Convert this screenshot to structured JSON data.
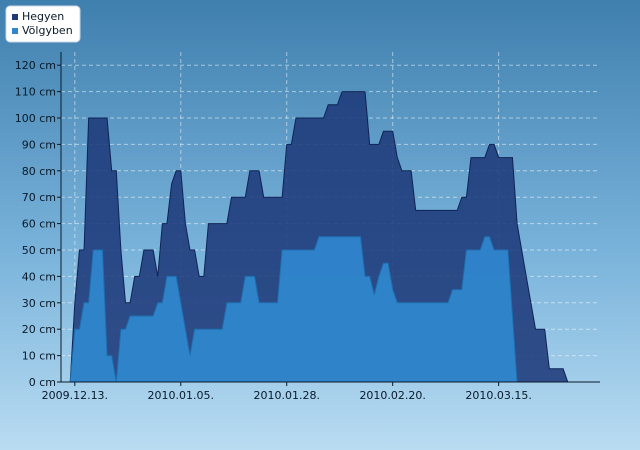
{
  "chart_data": {
    "type": "area",
    "title": "",
    "xlabel": "",
    "ylabel": "",
    "y_unit": "cm",
    "ylim": [
      0,
      125
    ],
    "xlim": [
      "2009-12-10",
      "2010-04-06"
    ],
    "grid": true,
    "legend_position": "top-left",
    "y_ticks": [
      0,
      10,
      20,
      30,
      40,
      50,
      60,
      70,
      80,
      90,
      100,
      110,
      120
    ],
    "y_tick_labels": [
      "0 cm",
      "10 cm",
      "20 cm",
      "30 cm",
      "40 cm",
      "50 cm",
      "60 cm",
      "70 cm",
      "80 cm",
      "90 cm",
      "100 cm",
      "110 cm",
      "120 cm"
    ],
    "x_ticks": [
      "2009-12-13",
      "2010-01-05",
      "2010-01-28",
      "2010-02-20",
      "2010-03-15"
    ],
    "x_tick_labels": [
      "2009.12.13.",
      "2010.01.05.",
      "2010.01.28.",
      "2010.02.20.",
      "2010.03.15."
    ],
    "series": [
      {
        "name": "Hegyen",
        "color": "#1e3a7a",
        "points": [
          [
            "2009-12-10",
            0
          ],
          [
            "2009-12-11",
            0
          ],
          [
            "2009-12-12",
            0
          ],
          [
            "2009-12-13",
            30
          ],
          [
            "2009-12-14",
            50
          ],
          [
            "2009-12-15",
            50
          ],
          [
            "2009-12-16",
            100
          ],
          [
            "2009-12-17",
            100
          ],
          [
            "2009-12-18",
            100
          ],
          [
            "2009-12-19",
            100
          ],
          [
            "2009-12-20",
            100
          ],
          [
            "2009-12-21",
            80
          ],
          [
            "2009-12-22",
            80
          ],
          [
            "2009-12-23",
            50
          ],
          [
            "2009-12-24",
            30
          ],
          [
            "2009-12-25",
            30
          ],
          [
            "2009-12-26",
            40
          ],
          [
            "2009-12-27",
            40
          ],
          [
            "2009-12-28",
            50
          ],
          [
            "2009-12-29",
            50
          ],
          [
            "2009-12-30",
            50
          ],
          [
            "2009-12-31",
            40
          ],
          [
            "2010-01-01",
            60
          ],
          [
            "2010-01-02",
            60
          ],
          [
            "2010-01-03",
            75
          ],
          [
            "2010-01-04",
            80
          ],
          [
            "2010-01-05",
            80
          ],
          [
            "2010-01-06",
            60
          ],
          [
            "2010-01-07",
            50
          ],
          [
            "2010-01-08",
            50
          ],
          [
            "2010-01-09",
            40
          ],
          [
            "2010-01-10",
            40
          ],
          [
            "2010-01-11",
            60
          ],
          [
            "2010-01-12",
            60
          ],
          [
            "2010-01-13",
            60
          ],
          [
            "2010-01-14",
            60
          ],
          [
            "2010-01-15",
            60
          ],
          [
            "2010-01-16",
            70
          ],
          [
            "2010-01-17",
            70
          ],
          [
            "2010-01-18",
            70
          ],
          [
            "2010-01-19",
            70
          ],
          [
            "2010-01-20",
            80
          ],
          [
            "2010-01-21",
            80
          ],
          [
            "2010-01-22",
            80
          ],
          [
            "2010-01-23",
            70
          ],
          [
            "2010-01-24",
            70
          ],
          [
            "2010-01-25",
            70
          ],
          [
            "2010-01-26",
            70
          ],
          [
            "2010-01-27",
            70
          ],
          [
            "2010-01-28",
            90
          ],
          [
            "2010-01-29",
            90
          ],
          [
            "2010-01-30",
            100
          ],
          [
            "2010-01-31",
            100
          ],
          [
            "2010-02-01",
            100
          ],
          [
            "2010-02-02",
            100
          ],
          [
            "2010-02-03",
            100
          ],
          [
            "2010-02-04",
            100
          ],
          [
            "2010-02-05",
            100
          ],
          [
            "2010-02-06",
            105
          ],
          [
            "2010-02-07",
            105
          ],
          [
            "2010-02-08",
            105
          ],
          [
            "2010-02-09",
            110
          ],
          [
            "2010-02-10",
            110
          ],
          [
            "2010-02-11",
            110
          ],
          [
            "2010-02-12",
            110
          ],
          [
            "2010-02-13",
            110
          ],
          [
            "2010-02-14",
            110
          ],
          [
            "2010-02-15",
            90
          ],
          [
            "2010-02-16",
            90
          ],
          [
            "2010-02-17",
            90
          ],
          [
            "2010-02-18",
            95
          ],
          [
            "2010-02-19",
            95
          ],
          [
            "2010-02-20",
            95
          ],
          [
            "2010-02-21",
            85
          ],
          [
            "2010-02-22",
            80
          ],
          [
            "2010-02-23",
            80
          ],
          [
            "2010-02-24",
            80
          ],
          [
            "2010-02-25",
            65
          ],
          [
            "2010-02-26",
            65
          ],
          [
            "2010-02-27",
            65
          ],
          [
            "2010-02-28",
            65
          ],
          [
            "2010-03-01",
            65
          ],
          [
            "2010-03-02",
            65
          ],
          [
            "2010-03-03",
            65
          ],
          [
            "2010-03-04",
            65
          ],
          [
            "2010-03-05",
            65
          ],
          [
            "2010-03-06",
            65
          ],
          [
            "2010-03-07",
            70
          ],
          [
            "2010-03-08",
            70
          ],
          [
            "2010-03-09",
            85
          ],
          [
            "2010-03-10",
            85
          ],
          [
            "2010-03-11",
            85
          ],
          [
            "2010-03-12",
            85
          ],
          [
            "2010-03-13",
            90
          ],
          [
            "2010-03-14",
            90
          ],
          [
            "2010-03-15",
            85
          ],
          [
            "2010-03-16",
            85
          ],
          [
            "2010-03-17",
            85
          ],
          [
            "2010-03-18",
            85
          ],
          [
            "2010-03-19",
            60
          ],
          [
            "2010-03-20",
            50
          ],
          [
            "2010-03-21",
            40
          ],
          [
            "2010-03-22",
            30
          ],
          [
            "2010-03-23",
            20
          ],
          [
            "2010-03-24",
            20
          ],
          [
            "2010-03-25",
            20
          ],
          [
            "2010-03-26",
            5
          ],
          [
            "2010-03-27",
            5
          ],
          [
            "2010-03-28",
            5
          ],
          [
            "2010-03-29",
            5
          ],
          [
            "2010-03-30",
            0
          ]
        ]
      },
      {
        "name": "Völgyben",
        "color": "#2f86cc",
        "points": [
          [
            "2009-12-10",
            0
          ],
          [
            "2009-12-11",
            0
          ],
          [
            "2009-12-12",
            0
          ],
          [
            "2009-12-13",
            20
          ],
          [
            "2009-12-14",
            20
          ],
          [
            "2009-12-15",
            30
          ],
          [
            "2009-12-16",
            30
          ],
          [
            "2009-12-17",
            50
          ],
          [
            "2009-12-18",
            50
          ],
          [
            "2009-12-19",
            50
          ],
          [
            "2009-12-20",
            10
          ],
          [
            "2009-12-21",
            10
          ],
          [
            "2009-12-22",
            0
          ],
          [
            "2009-12-23",
            20
          ],
          [
            "2009-12-24",
            20
          ],
          [
            "2009-12-25",
            25
          ],
          [
            "2009-12-26",
            25
          ],
          [
            "2009-12-27",
            25
          ],
          [
            "2009-12-28",
            25
          ],
          [
            "2009-12-29",
            25
          ],
          [
            "2009-12-30",
            25
          ],
          [
            "2009-12-31",
            30
          ],
          [
            "2010-01-01",
            30
          ],
          [
            "2010-01-02",
            40
          ],
          [
            "2010-01-03",
            40
          ],
          [
            "2010-01-04",
            40
          ],
          [
            "2010-01-05",
            30
          ],
          [
            "2010-01-06",
            20
          ],
          [
            "2010-01-07",
            10
          ],
          [
            "2010-01-08",
            20
          ],
          [
            "2010-01-09",
            20
          ],
          [
            "2010-01-10",
            20
          ],
          [
            "2010-01-11",
            20
          ],
          [
            "2010-01-12",
            20
          ],
          [
            "2010-01-13",
            20
          ],
          [
            "2010-01-14",
            20
          ],
          [
            "2010-01-15",
            30
          ],
          [
            "2010-01-16",
            30
          ],
          [
            "2010-01-17",
            30
          ],
          [
            "2010-01-18",
            30
          ],
          [
            "2010-01-19",
            40
          ],
          [
            "2010-01-20",
            40
          ],
          [
            "2010-01-21",
            40
          ],
          [
            "2010-01-22",
            30
          ],
          [
            "2010-01-23",
            30
          ],
          [
            "2010-01-24",
            30
          ],
          [
            "2010-01-25",
            30
          ],
          [
            "2010-01-26",
            30
          ],
          [
            "2010-01-27",
            50
          ],
          [
            "2010-01-28",
            50
          ],
          [
            "2010-01-29",
            50
          ],
          [
            "2010-01-30",
            50
          ],
          [
            "2010-01-31",
            50
          ],
          [
            "2010-02-01",
            50
          ],
          [
            "2010-02-02",
            50
          ],
          [
            "2010-02-03",
            50
          ],
          [
            "2010-02-04",
            55
          ],
          [
            "2010-02-05",
            55
          ],
          [
            "2010-02-06",
            55
          ],
          [
            "2010-02-07",
            55
          ],
          [
            "2010-02-08",
            55
          ],
          [
            "2010-02-09",
            55
          ],
          [
            "2010-02-10",
            55
          ],
          [
            "2010-02-11",
            55
          ],
          [
            "2010-02-12",
            55
          ],
          [
            "2010-02-13",
            55
          ],
          [
            "2010-02-14",
            40
          ],
          [
            "2010-02-15",
            40
          ],
          [
            "2010-02-16",
            33
          ],
          [
            "2010-02-17",
            40
          ],
          [
            "2010-02-18",
            45
          ],
          [
            "2010-02-19",
            45
          ],
          [
            "2010-02-20",
            35
          ],
          [
            "2010-02-21",
            30
          ],
          [
            "2010-02-22",
            30
          ],
          [
            "2010-02-23",
            30
          ],
          [
            "2010-02-24",
            30
          ],
          [
            "2010-02-25",
            30
          ],
          [
            "2010-02-26",
            30
          ],
          [
            "2010-02-27",
            30
          ],
          [
            "2010-02-28",
            30
          ],
          [
            "2010-03-01",
            30
          ],
          [
            "2010-03-02",
            30
          ],
          [
            "2010-03-03",
            30
          ],
          [
            "2010-03-04",
            30
          ],
          [
            "2010-03-05",
            35
          ],
          [
            "2010-03-06",
            35
          ],
          [
            "2010-03-07",
            35
          ],
          [
            "2010-03-08",
            50
          ],
          [
            "2010-03-09",
            50
          ],
          [
            "2010-03-10",
            50
          ],
          [
            "2010-03-11",
            50
          ],
          [
            "2010-03-12",
            55
          ],
          [
            "2010-03-13",
            55
          ],
          [
            "2010-03-14",
            50
          ],
          [
            "2010-03-15",
            50
          ],
          [
            "2010-03-16",
            50
          ],
          [
            "2010-03-17",
            50
          ],
          [
            "2010-03-18",
            25
          ],
          [
            "2010-03-19",
            0
          ],
          [
            "2010-03-20",
            0
          ],
          [
            "2010-03-21",
            0
          ],
          [
            "2010-03-22",
            0
          ],
          [
            "2010-03-23",
            0
          ],
          [
            "2010-03-24",
            0
          ],
          [
            "2010-03-25",
            0
          ],
          [
            "2010-03-26",
            0
          ],
          [
            "2010-03-27",
            0
          ],
          [
            "2010-03-28",
            0
          ],
          [
            "2010-03-29",
            0
          ],
          [
            "2010-03-30",
            0
          ]
        ]
      }
    ]
  }
}
